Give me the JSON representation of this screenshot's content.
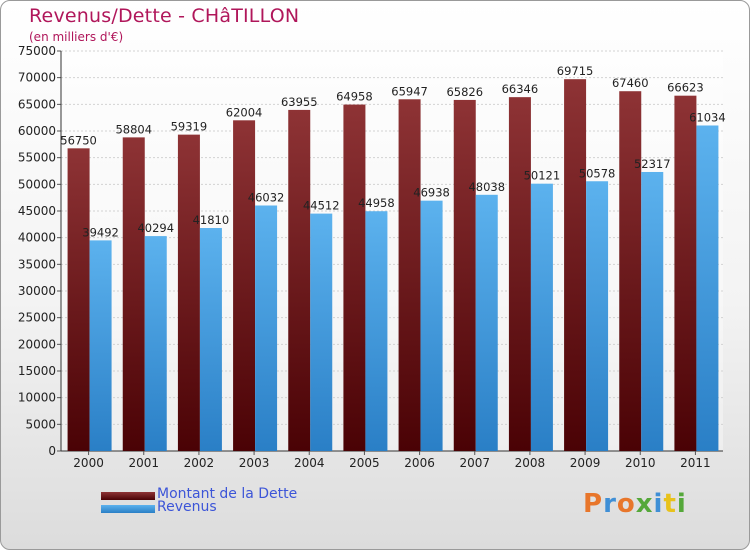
{
  "title": "Revenus/Dette - CHâTILLON",
  "subtitle": "(en milliers d'€)",
  "colors": {
    "title": "#b0165a",
    "debt_top": "#8e3335",
    "debt_bottom": "#4a0205",
    "revenue_top": "#5cb2ee",
    "revenue_bottom": "#2a7fc6",
    "legend_text": "#3c55d8"
  },
  "legend": [
    {
      "label": "Montant de la Dette",
      "series": 0
    },
    {
      "label": "Revenus",
      "series": 1
    }
  ],
  "logo": {
    "text": "Proxiti",
    "letter_colors": [
      "#e8762b",
      "#3f8fd6",
      "#e8762b",
      "#55a83a",
      "#3f8fd6",
      "#e8c21b",
      "#55a83a"
    ]
  },
  "chart_data": {
    "type": "bar",
    "title": "Revenus/Dette - CHâTILLON",
    "subtitle": "(en milliers d'€)",
    "xlabel": "",
    "ylabel": "",
    "categories": [
      "2000",
      "2001",
      "2002",
      "2003",
      "2004",
      "2005",
      "2006",
      "2007",
      "2008",
      "2009",
      "2010",
      "2011"
    ],
    "series": [
      {
        "name": "Montant de la Dette",
        "values": [
          56750,
          58804,
          59319,
          62004,
          63955,
          64958,
          65947,
          65826,
          66346,
          69715,
          67460,
          66623
        ]
      },
      {
        "name": "Revenus",
        "values": [
          39492,
          40294,
          41810,
          46032,
          44512,
          44958,
          46938,
          48038,
          50121,
          50578,
          52317,
          61034
        ]
      }
    ],
    "ylim": [
      0,
      75000
    ],
    "yticks": [
      0,
      5000,
      10000,
      15000,
      20000,
      25000,
      30000,
      35000,
      40000,
      45000,
      50000,
      55000,
      60000,
      65000,
      70000,
      75000
    ],
    "grid": true,
    "legend_position": "bottom-left",
    "data_labels": true
  }
}
